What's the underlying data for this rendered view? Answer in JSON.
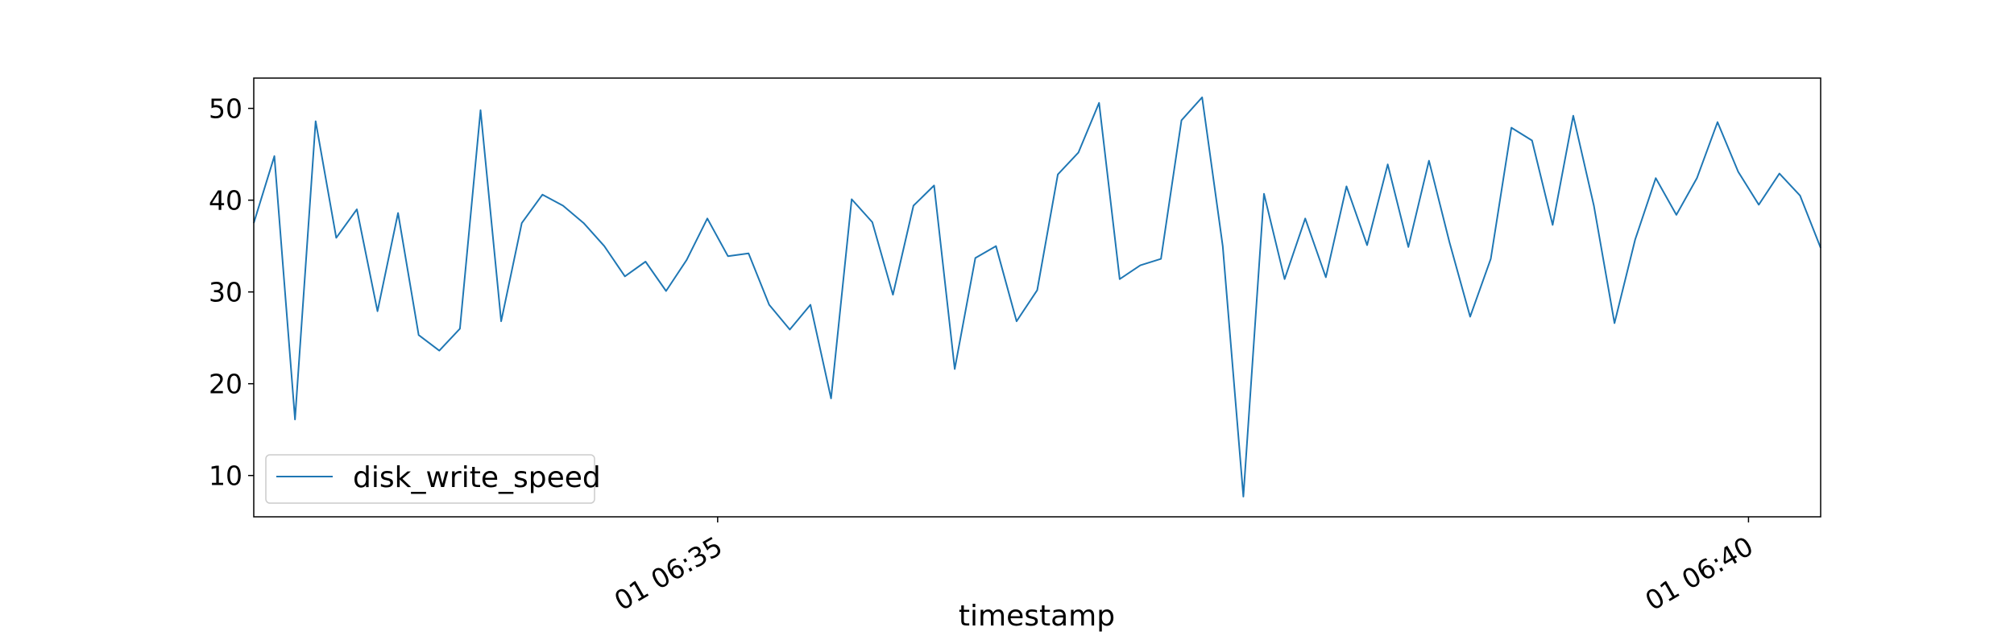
{
  "chart_data": {
    "type": "line",
    "title": "",
    "xlabel": "timestamp",
    "ylabel": "",
    "x_start": "01 06:32:45",
    "x_step_seconds": 6,
    "x_ticks": [
      {
        "value": "01 06:35:00",
        "label": "01 06:35"
      },
      {
        "value": "01 06:40:00",
        "label": "01 06:40"
      }
    ],
    "y_ticks": [
      10,
      20,
      30,
      40,
      50
    ],
    "ylim": [
      5.5,
      53.3
    ],
    "grid": false,
    "legend_position": "lower-left",
    "series": [
      {
        "name": "disk_write_speed",
        "color": "#1f77b4",
        "values": [
          37.5,
          44.8,
          16.1,
          48.6,
          35.9,
          39.0,
          27.9,
          38.6,
          25.3,
          23.6,
          26.0,
          49.8,
          26.8,
          37.5,
          40.6,
          39.4,
          37.5,
          35.0,
          31.7,
          33.3,
          30.1,
          33.5,
          38.0,
          33.9,
          34.2,
          28.6,
          25.9,
          28.6,
          18.4,
          40.1,
          37.6,
          29.7,
          39.4,
          41.6,
          21.6,
          33.7,
          35.0,
          26.8,
          30.2,
          42.8,
          45.2,
          50.6,
          31.4,
          32.9,
          33.6,
          48.7,
          51.2,
          35.0,
          7.7,
          40.7,
          31.4,
          38.0,
          31.6,
          41.5,
          35.1,
          43.9,
          34.9,
          44.3,
          35.4,
          27.3,
          33.6,
          47.9,
          46.5,
          37.3,
          49.2,
          39.4,
          26.6,
          35.7,
          42.4,
          38.4,
          42.4,
          48.5,
          43.1,
          39.5,
          42.9,
          40.5,
          34.8
        ]
      }
    ]
  }
}
